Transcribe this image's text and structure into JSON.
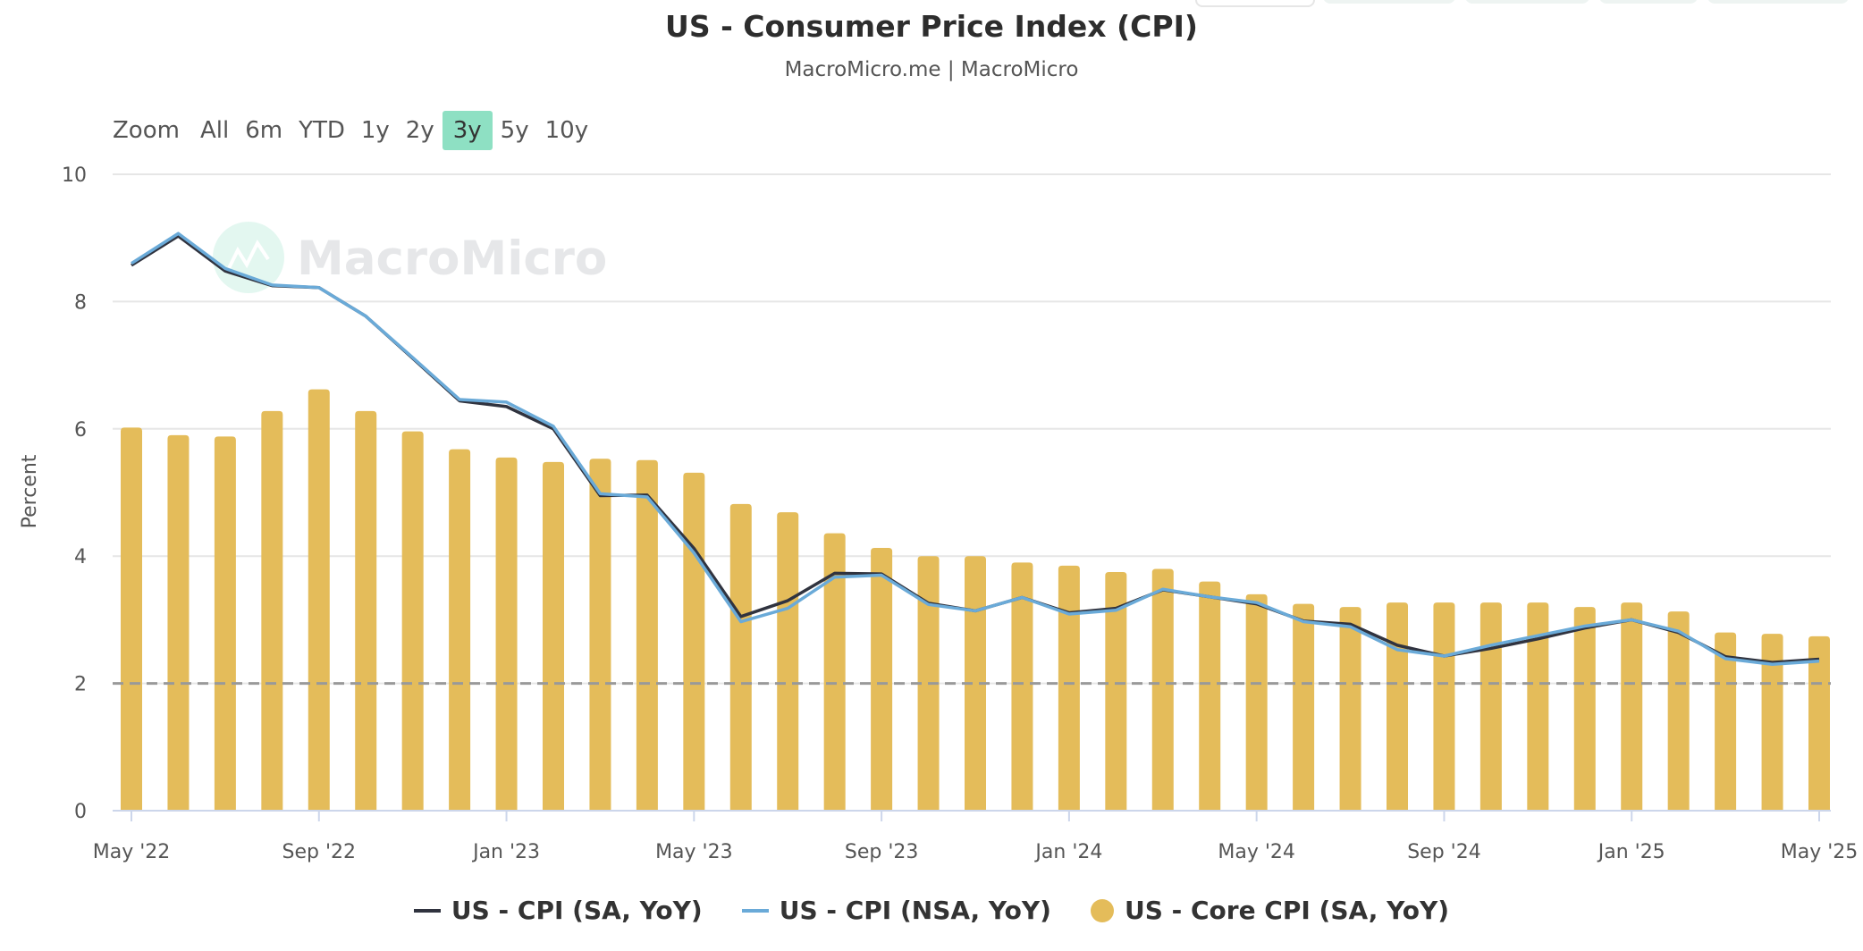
{
  "header": {
    "title": "US - Consumer Price Index (CPI)",
    "subtitle": "MacroMicro.me | MacroMicro"
  },
  "range_selector": {
    "label": "Zoom",
    "options": [
      "All",
      "6m",
      "YTD",
      "1y",
      "2y",
      "3y",
      "5y",
      "10y"
    ],
    "selected": "3y",
    "selected_color": "#8ee0c3"
  },
  "watermark": "MacroMicro",
  "chart_data": {
    "type": "bar+line",
    "title": "US - Consumer Price Index (CPI)",
    "subtitle": "MacroMicro.me | MacroMicro",
    "ylabel": "Percent",
    "xlabel": "",
    "ylim": [
      0,
      10
    ],
    "yticks": [
      "0",
      "2",
      "4",
      "6",
      "8",
      "10"
    ],
    "grid": true,
    "legend_position": "bottom",
    "reference_line": {
      "value": 2,
      "style": "dashed",
      "color": "#999999"
    },
    "categories": [
      "May '22",
      "Jun '22",
      "Jul '22",
      "Aug '22",
      "Sep '22",
      "Oct '22",
      "Nov '22",
      "Dec '22",
      "Jan '23",
      "Feb '23",
      "Mar '23",
      "Apr '23",
      "May '23",
      "Jun '23",
      "Jul '23",
      "Aug '23",
      "Sep '23",
      "Oct '23",
      "Nov '23",
      "Dec '23",
      "Jan '24",
      "Feb '24",
      "Mar '24",
      "Apr '24",
      "May '24",
      "Jun '24",
      "Jul '24",
      "Aug '24",
      "Sep '24",
      "Oct '24",
      "Nov '24",
      "Dec '24",
      "Jan '25",
      "Feb '25",
      "Mar '25",
      "Apr '25",
      "May '25"
    ],
    "xtick_labels": [
      "May '22",
      "Sep '22",
      "Jan '23",
      "May '23",
      "Sep '23",
      "Jan '24",
      "May '24",
      "Sep '24",
      "Jan '25",
      "May '25"
    ],
    "series": [
      {
        "name": "US - CPI (SA, YoY)",
        "type": "line",
        "color": "#30333f",
        "values": [
          8.57,
          9.03,
          8.48,
          8.25,
          8.22,
          7.77,
          7.11,
          6.44,
          6.35,
          6.0,
          4.95,
          4.96,
          4.12,
          3.05,
          3.3,
          3.73,
          3.72,
          3.26,
          3.14,
          3.35,
          3.11,
          3.18,
          3.47,
          3.36,
          3.25,
          2.98,
          2.93,
          2.6,
          2.43,
          2.55,
          2.7,
          2.87,
          3.0,
          2.8,
          2.42,
          2.33,
          2.38
        ]
      },
      {
        "name": "US - CPI (NSA, YoY)",
        "type": "line",
        "color": "#6aaad8",
        "values": [
          8.6,
          9.07,
          8.52,
          8.26,
          8.22,
          7.77,
          7.12,
          6.46,
          6.42,
          6.04,
          4.98,
          4.93,
          4.05,
          2.97,
          3.18,
          3.67,
          3.7,
          3.24,
          3.14,
          3.35,
          3.09,
          3.15,
          3.48,
          3.36,
          3.27,
          2.97,
          2.89,
          2.53,
          2.43,
          2.6,
          2.75,
          2.9,
          3.0,
          2.82,
          2.39,
          2.3,
          2.35
        ]
      },
      {
        "name": "US - Core CPI (SA, YoY)",
        "type": "bar",
        "color": "#e4bc5a",
        "values": [
          6.02,
          5.9,
          5.88,
          6.28,
          6.62,
          6.28,
          5.96,
          5.68,
          5.55,
          5.48,
          5.53,
          5.51,
          5.31,
          4.82,
          4.69,
          4.36,
          4.13,
          4.0,
          4.0,
          3.9,
          3.85,
          3.75,
          3.8,
          3.6,
          3.4,
          3.25,
          3.2,
          3.27,
          3.27,
          3.27,
          3.27,
          3.2,
          3.27,
          3.13,
          2.8,
          2.78,
          2.74
        ]
      }
    ]
  }
}
